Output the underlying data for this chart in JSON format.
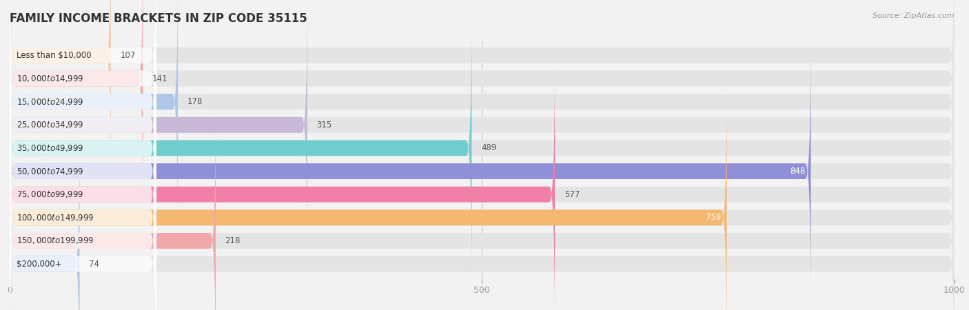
{
  "title": "FAMILY INCOME BRACKETS IN ZIP CODE 35115",
  "source": "Source: ZipAtlas.com",
  "categories": [
    "Less than $10,000",
    "$10,000 to $14,999",
    "$15,000 to $24,999",
    "$25,000 to $34,999",
    "$35,000 to $49,999",
    "$50,000 to $74,999",
    "$75,000 to $99,999",
    "$100,000 to $149,999",
    "$150,000 to $199,999",
    "$200,000+"
  ],
  "values": [
    107,
    141,
    178,
    315,
    489,
    848,
    577,
    759,
    218,
    74
  ],
  "bar_colors": [
    "#f5c8a0",
    "#f0a8a8",
    "#aec6e8",
    "#c8b8d8",
    "#6ecece",
    "#9090d8",
    "#f080a8",
    "#f5b870",
    "#f0a8a8",
    "#aec6e8"
  ],
  "xlim": [
    0,
    1000
  ],
  "xticks": [
    0,
    500,
    1000
  ],
  "background_color": "#f2f2f2",
  "bar_bg_color": "#e4e4e4",
  "title_fontsize": 12,
  "label_fontsize": 8.5,
  "value_fontsize": 8.5,
  "bar_height": 0.68,
  "label_inside_color": "#ffffff",
  "label_outside_color": "#555555",
  "value_white_threshold": 700
}
